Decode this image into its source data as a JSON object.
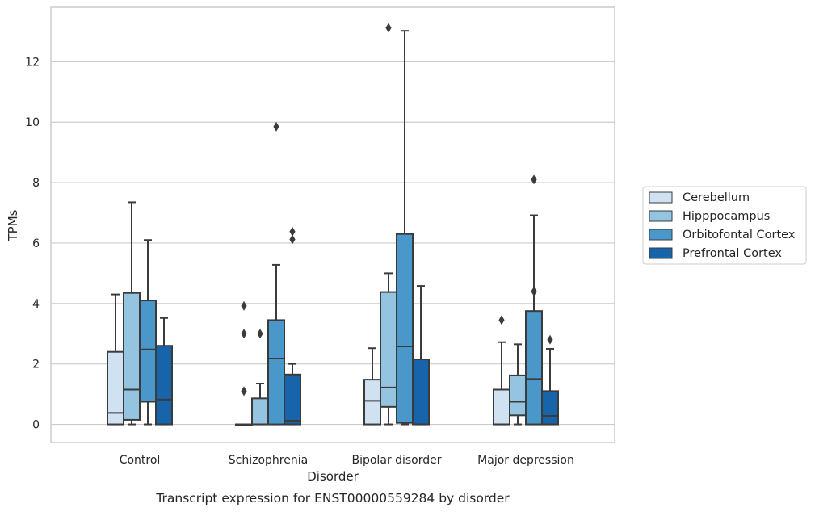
{
  "caption": "Transcript expression for ENST00000559284 by disorder",
  "chart_data": {
    "type": "boxplot",
    "xlabel": "Disorder",
    "ylabel": "TPMs",
    "ylim": [
      -0.6,
      13.8
    ],
    "yticks": [
      0,
      2,
      4,
      6,
      8,
      10,
      12
    ],
    "grid": "horizontal",
    "legend_position": "right",
    "categories": [
      "Control",
      "Schizophrenia",
      "Bipolar disorder",
      "Major depression"
    ],
    "series": [
      {
        "name": "Cerebellum",
        "color": "#d0e1f2",
        "boxes": [
          {
            "whisker_low": 0,
            "q1": 0,
            "median": 0.38,
            "q3": 2.4,
            "whisker_high": 4.3,
            "outliers": []
          },
          {
            "whisker_low": 0,
            "q1": 0,
            "median": 0,
            "q3": 0,
            "whisker_high": 0,
            "outliers": [
              1.1,
              3.0,
              3.92
            ]
          },
          {
            "whisker_low": 0,
            "q1": 0,
            "median": 0.78,
            "q3": 1.48,
            "whisker_high": 2.52,
            "outliers": []
          },
          {
            "whisker_low": 0,
            "q1": 0,
            "median": 0,
            "q3": 1.15,
            "whisker_high": 2.72,
            "outliers": [
              3.45
            ]
          }
        ]
      },
      {
        "name": "Hipppocampus",
        "color": "#94c4df",
        "boxes": [
          {
            "whisker_low": 0,
            "q1": 0.15,
            "median": 1.15,
            "q3": 4.35,
            "whisker_high": 7.35,
            "outliers": []
          },
          {
            "whisker_low": 0,
            "q1": 0,
            "median": 0,
            "q3": 0.86,
            "whisker_high": 1.35,
            "outliers": [
              3.0
            ]
          },
          {
            "whisker_low": 0,
            "q1": 0.58,
            "median": 1.22,
            "q3": 4.38,
            "whisker_high": 5.0,
            "outliers": [
              13.12
            ]
          },
          {
            "whisker_low": 0,
            "q1": 0.3,
            "median": 0.75,
            "q3": 1.62,
            "whisker_high": 2.65,
            "outliers": []
          }
        ]
      },
      {
        "name": "Orbitofontal Cortex",
        "color": "#4a98c9",
        "boxes": [
          {
            "whisker_low": 0,
            "q1": 0.75,
            "median": 2.48,
            "q3": 4.1,
            "whisker_high": 6.1,
            "outliers": []
          },
          {
            "whisker_low": 0,
            "q1": 0,
            "median": 2.18,
            "q3": 3.45,
            "whisker_high": 5.28,
            "outliers": [
              9.85
            ]
          },
          {
            "whisker_low": 0,
            "q1": 0.05,
            "median": 2.58,
            "q3": 6.3,
            "whisker_high": 13.02,
            "outliers": []
          },
          {
            "whisker_low": 0,
            "q1": 0,
            "median": 1.5,
            "q3": 3.75,
            "whisker_high": 6.92,
            "outliers": [
              4.4,
              8.1
            ]
          }
        ]
      },
      {
        "name": "Prefrontal Cortex",
        "color": "#1764ab",
        "boxes": [
          {
            "whisker_low": 0,
            "q1": 0,
            "median": 0.82,
            "q3": 2.6,
            "whisker_high": 3.52,
            "outliers": []
          },
          {
            "whisker_low": 0,
            "q1": 0,
            "median": 0.12,
            "q3": 1.65,
            "whisker_high": 2.0,
            "outliers": [
              6.12,
              6.38
            ]
          },
          {
            "whisker_low": 0,
            "q1": 0,
            "median": 0,
            "q3": 2.15,
            "whisker_high": 4.58,
            "outliers": []
          },
          {
            "whisker_low": 0,
            "q1": 0,
            "median": 0.28,
            "q3": 1.1,
            "whisker_high": 2.5,
            "outliers": [
              2.8
            ]
          }
        ]
      }
    ]
  }
}
